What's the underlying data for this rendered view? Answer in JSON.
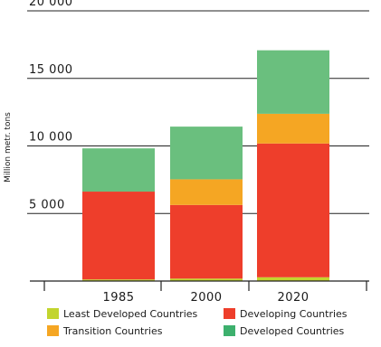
{
  "chart_data": {
    "type": "bar",
    "stacked": true,
    "title": "",
    "xlabel": "",
    "ylabel": "Million metr. tons",
    "ylim": [
      0,
      20000
    ],
    "yticks": [
      5000,
      10000,
      15000,
      20000
    ],
    "ytick_labels": [
      "5 000",
      "10 000",
      "15 000",
      "20 000"
    ],
    "grid": true,
    "categories": [
      "1985",
      "2000",
      "2020"
    ],
    "series": [
      {
        "name": "Least Developed Countries",
        "color": "#c2d52e",
        "values": [
          120,
          180,
          280
        ]
      },
      {
        "name": "Developing Countries",
        "color": "#ee3e2b",
        "values": [
          6500,
          5450,
          9900
        ]
      },
      {
        "name": "Transition Countries",
        "color": "#f5a623",
        "values": [
          0,
          1900,
          2200
        ]
      },
      {
        "name": "Developed Countries",
        "color": "#6abf7e",
        "values": [
          3200,
          3900,
          4700
        ]
      }
    ],
    "legend": [
      {
        "name": "Least Developed Countries",
        "color": "#c2d52e"
      },
      {
        "name": "Developing Countries",
        "color": "#ee3e2b"
      },
      {
        "name": "Transition Countries",
        "color": "#f5a623"
      },
      {
        "name": "Developed Countries",
        "color": "#3db06d"
      }
    ],
    "legend_position": "bottom"
  }
}
